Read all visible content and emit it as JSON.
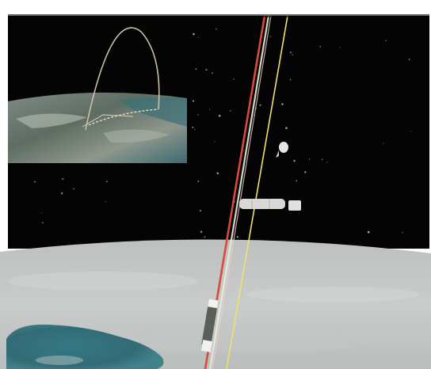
{
  "viewport": {
    "kind": "3d-orbital-visualization",
    "background": "#ffffff",
    "space_color": "#050505",
    "planet_color": "#c7cac9",
    "ocean_color": "#2d6f7c",
    "tether_colors": [
      "#d94a3a",
      "#f0e26a",
      "#e6f0d0"
    ]
  },
  "inset": {
    "kind": "inset-earth-view",
    "arc_color": "#c8c0b0",
    "earth_colors": [
      "#5f6f63",
      "#8b9588",
      "#2f5f66"
    ]
  },
  "objects": [
    {
      "name": "space-capsule",
      "icon": "capsule-icon"
    },
    {
      "name": "space-station-module",
      "icon": "module-icon"
    }
  ]
}
